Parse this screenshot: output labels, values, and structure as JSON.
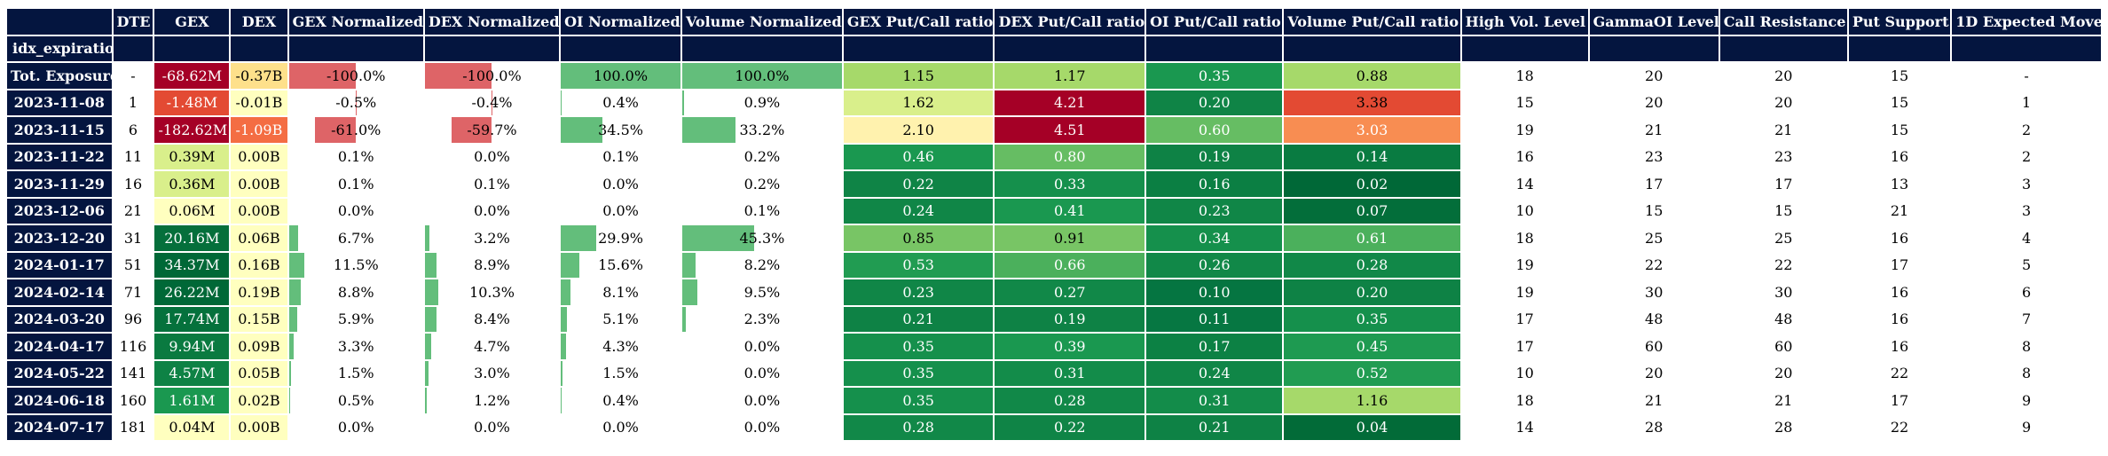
{
  "table": {
    "index_name": "idx_expiration_date",
    "columns": [
      {
        "label": "DTE",
        "type": "text"
      },
      {
        "label": "GEX",
        "type": "heat"
      },
      {
        "label": "DEX",
        "type": "heat"
      },
      {
        "label": "GEX Normalized",
        "type": "bar"
      },
      {
        "label": "DEX Normalized",
        "type": "bar"
      },
      {
        "label": "OI Normalized",
        "type": "bar"
      },
      {
        "label": "Volume Normalized",
        "type": "bar"
      },
      {
        "label": "GEX Put/Call ratio",
        "type": "heat"
      },
      {
        "label": "DEX Put/Call ratio",
        "type": "heat"
      },
      {
        "label": "OI Put/Call ratio",
        "type": "heat"
      },
      {
        "label": "Volume Put/Call ratio",
        "type": "heat"
      },
      {
        "label": "High Vol. Level",
        "type": "text"
      },
      {
        "label": "GammaOI Level",
        "type": "text"
      },
      {
        "label": "Call Resistance",
        "type": "text"
      },
      {
        "label": "Put Support",
        "type": "text"
      },
      {
        "label": "1D Expected Move",
        "type": "text"
      }
    ],
    "column_widths": [
      115,
      44,
      82,
      62,
      148,
      148,
      132,
      176,
      165,
      165,
      150,
      194,
      139,
      142,
      140,
      112,
      164
    ],
    "colors": {
      "header_bg": "#04153f",
      "header_text": "#ffffff",
      "bar_negative": "#de6467",
      "bar_positive": "#63be7b"
    },
    "rows": [
      {
        "index": "Tot. Exposure",
        "cells": [
          {
            "t": "-"
          },
          {
            "t": "-68.62M",
            "bg": "#a50026",
            "fg": "#ffffff"
          },
          {
            "t": "-0.37B",
            "bg": "#fee08b",
            "fg": "#000000"
          },
          {
            "t": "-100.0%",
            "bar": -1.0
          },
          {
            "t": "-100.0%",
            "bar": -1.0
          },
          {
            "t": "100.0%",
            "bar": 1.0
          },
          {
            "t": "100.0%",
            "bar": 1.0
          },
          {
            "t": "1.15",
            "bg": "#a6d96a",
            "fg": "#000000"
          },
          {
            "t": "1.17",
            "bg": "#a6d96a",
            "fg": "#000000"
          },
          {
            "t": "0.35",
            "bg": "#1a9850",
            "fg": "#ffffff"
          },
          {
            "t": "0.88",
            "bg": "#a6d96a",
            "fg": "#000000"
          },
          {
            "t": "18"
          },
          {
            "t": "20"
          },
          {
            "t": "20"
          },
          {
            "t": "15"
          },
          {
            "t": "-"
          }
        ]
      },
      {
        "index": "2023-11-08",
        "cells": [
          {
            "t": "1"
          },
          {
            "t": "-1.48M",
            "bg": "#e34a33",
            "fg": "#ffffff"
          },
          {
            "t": "-0.01B",
            "bg": "#ffffbf",
            "fg": "#000000"
          },
          {
            "t": "-0.5%",
            "bar": -0.005
          },
          {
            "t": "-0.4%",
            "bar": -0.004
          },
          {
            "t": "0.4%",
            "bar": 0.004
          },
          {
            "t": "0.9%",
            "bar": 0.009
          },
          {
            "t": "1.62",
            "bg": "#d9ef8b",
            "fg": "#000000"
          },
          {
            "t": "4.21",
            "bg": "#a50026",
            "fg": "#ffffff"
          },
          {
            "t": "0.20",
            "bg": "#0f8446",
            "fg": "#ffffff"
          },
          {
            "t": "3.38",
            "bg": "#e34a33",
            "fg": "#000000"
          },
          {
            "t": "15"
          },
          {
            "t": "20"
          },
          {
            "t": "20"
          },
          {
            "t": "15"
          },
          {
            "t": "1"
          }
        ]
      },
      {
        "index": "2023-11-15",
        "cells": [
          {
            "t": "6"
          },
          {
            "t": "-182.62M",
            "bg": "#a50026",
            "fg": "#ffffff"
          },
          {
            "t": "-1.09B",
            "bg": "#f46d43",
            "fg": "#ffffff"
          },
          {
            "t": "-61.0%",
            "bar": -0.61
          },
          {
            "t": "-59.7%",
            "bar": -0.597
          },
          {
            "t": "34.5%",
            "bar": 0.345
          },
          {
            "t": "33.2%",
            "bar": 0.332
          },
          {
            "t": "2.10",
            "bg": "#fff2ae",
            "fg": "#000000"
          },
          {
            "t": "4.51",
            "bg": "#a50026",
            "fg": "#ffffff"
          },
          {
            "t": "0.60",
            "bg": "#66bd63",
            "fg": "#ffffff"
          },
          {
            "t": "3.03",
            "bg": "#f88d52",
            "fg": "#ffffff"
          },
          {
            "t": "19"
          },
          {
            "t": "21"
          },
          {
            "t": "21"
          },
          {
            "t": "15"
          },
          {
            "t": "2"
          }
        ]
      },
      {
        "index": "2023-11-22",
        "cells": [
          {
            "t": "11"
          },
          {
            "t": "0.39M",
            "bg": "#d9ef8b",
            "fg": "#000000"
          },
          {
            "t": "0.00B",
            "bg": "#ffffbf",
            "fg": "#000000"
          },
          {
            "t": "0.1%"
          },
          {
            "t": "0.0%"
          },
          {
            "t": "0.1%"
          },
          {
            "t": "0.2%"
          },
          {
            "t": "0.46",
            "bg": "#1a9850",
            "fg": "#ffffff"
          },
          {
            "t": "0.80",
            "bg": "#66bd63",
            "fg": "#ffffff"
          },
          {
            "t": "0.19",
            "bg": "#0e8245",
            "fg": "#ffffff"
          },
          {
            "t": "0.14",
            "bg": "#097b41",
            "fg": "#ffffff"
          },
          {
            "t": "16"
          },
          {
            "t": "23"
          },
          {
            "t": "23"
          },
          {
            "t": "16"
          },
          {
            "t": "2"
          }
        ]
      },
      {
        "index": "2023-11-29",
        "cells": [
          {
            "t": "16"
          },
          {
            "t": "0.36M",
            "bg": "#d9ef8b",
            "fg": "#000000"
          },
          {
            "t": "0.00B",
            "bg": "#ffffbf",
            "fg": "#000000"
          },
          {
            "t": "0.1%"
          },
          {
            "t": "0.1%"
          },
          {
            "t": "0.0%"
          },
          {
            "t": "0.2%"
          },
          {
            "t": "0.22",
            "bg": "#0f8446",
            "fg": "#ffffff"
          },
          {
            "t": "0.33",
            "bg": "#15904c",
            "fg": "#ffffff"
          },
          {
            "t": "0.16",
            "bg": "#0b7f43",
            "fg": "#ffffff"
          },
          {
            "t": "0.02",
            "bg": "#006837",
            "fg": "#ffffff"
          },
          {
            "t": "14"
          },
          {
            "t": "17"
          },
          {
            "t": "17"
          },
          {
            "t": "13"
          },
          {
            "t": "3"
          }
        ]
      },
      {
        "index": "2023-12-06",
        "cells": [
          {
            "t": "21"
          },
          {
            "t": "0.06M",
            "bg": "#ffffbf",
            "fg": "#000000"
          },
          {
            "t": "0.00B",
            "bg": "#ffffbf",
            "fg": "#000000"
          },
          {
            "t": "0.0%"
          },
          {
            "t": "0.0%"
          },
          {
            "t": "0.0%"
          },
          {
            "t": "0.1%"
          },
          {
            "t": "0.24",
            "bg": "#108647",
            "fg": "#ffffff"
          },
          {
            "t": "0.41",
            "bg": "#1a9850",
            "fg": "#ffffff"
          },
          {
            "t": "0.23",
            "bg": "#108647",
            "fg": "#ffffff"
          },
          {
            "t": "0.07",
            "bg": "#036e3a",
            "fg": "#ffffff"
          },
          {
            "t": "10"
          },
          {
            "t": "15"
          },
          {
            "t": "15"
          },
          {
            "t": "21"
          },
          {
            "t": "3"
          }
        ]
      },
      {
        "index": "2023-12-20",
        "cells": [
          {
            "t": "31"
          },
          {
            "t": "20.16M",
            "bg": "#056f3b",
            "fg": "#ffffff"
          },
          {
            "t": "0.06B",
            "bg": "#ffffbf",
            "fg": "#000000"
          },
          {
            "t": "6.7%",
            "bar": 0.067
          },
          {
            "t": "3.2%",
            "bar": 0.032
          },
          {
            "t": "29.9%",
            "bar": 0.299
          },
          {
            "t": "45.3%",
            "bar": 0.453
          },
          {
            "t": "0.85",
            "bg": "#78c565",
            "fg": "#000000"
          },
          {
            "t": "0.91",
            "bg": "#78c565",
            "fg": "#000000"
          },
          {
            "t": "0.34",
            "bg": "#15904c",
            "fg": "#ffffff"
          },
          {
            "t": "0.61",
            "bg": "#4bb05c",
            "fg": "#ffffff"
          },
          {
            "t": "18"
          },
          {
            "t": "25"
          },
          {
            "t": "25"
          },
          {
            "t": "16"
          },
          {
            "t": "4"
          }
        ]
      },
      {
        "index": "2024-01-17",
        "cells": [
          {
            "t": "51"
          },
          {
            "t": "34.37M",
            "bg": "#006837",
            "fg": "#ffffff"
          },
          {
            "t": "0.16B",
            "bg": "#ffffbf",
            "fg": "#000000"
          },
          {
            "t": "11.5%",
            "bar": 0.115
          },
          {
            "t": "8.9%",
            "bar": 0.089
          },
          {
            "t": "15.6%",
            "bar": 0.156
          },
          {
            "t": "8.2%",
            "bar": 0.082
          },
          {
            "t": "0.53",
            "bg": "#219c52",
            "fg": "#ffffff"
          },
          {
            "t": "0.66",
            "bg": "#4bb05c",
            "fg": "#ffffff"
          },
          {
            "t": "0.26",
            "bg": "#118848",
            "fg": "#ffffff"
          },
          {
            "t": "0.28",
            "bg": "#118848",
            "fg": "#ffffff"
          },
          {
            "t": "19"
          },
          {
            "t": "22"
          },
          {
            "t": "22"
          },
          {
            "t": "17"
          },
          {
            "t": "5"
          }
        ]
      },
      {
        "index": "2024-02-14",
        "cells": [
          {
            "t": "71"
          },
          {
            "t": "26.22M",
            "bg": "#006837",
            "fg": "#ffffff"
          },
          {
            "t": "0.19B",
            "bg": "#ffffbf",
            "fg": "#000000"
          },
          {
            "t": "8.8%",
            "bar": 0.088
          },
          {
            "t": "10.3%",
            "bar": 0.103
          },
          {
            "t": "8.1%",
            "bar": 0.081
          },
          {
            "t": "9.5%",
            "bar": 0.095
          },
          {
            "t": "0.23",
            "bg": "#108647",
            "fg": "#ffffff"
          },
          {
            "t": "0.27",
            "bg": "#118848",
            "fg": "#ffffff"
          },
          {
            "t": "0.10",
            "bg": "#057541",
            "fg": "#ffffff"
          },
          {
            "t": "0.20",
            "bg": "#0e8245",
            "fg": "#ffffff"
          },
          {
            "t": "19"
          },
          {
            "t": "30"
          },
          {
            "t": "30"
          },
          {
            "t": "16"
          },
          {
            "t": "6"
          }
        ]
      },
      {
        "index": "2024-03-20",
        "cells": [
          {
            "t": "96"
          },
          {
            "t": "17.74M",
            "bg": "#05713c",
            "fg": "#ffffff"
          },
          {
            "t": "0.15B",
            "bg": "#ffffbf",
            "fg": "#000000"
          },
          {
            "t": "5.9%",
            "bar": 0.059
          },
          {
            "t": "8.4%",
            "bar": 0.084
          },
          {
            "t": "5.1%",
            "bar": 0.051
          },
          {
            "t": "2.3%",
            "bar": 0.023
          },
          {
            "t": "0.21",
            "bg": "#0e8245",
            "fg": "#ffffff"
          },
          {
            "t": "0.19",
            "bg": "#0e8245",
            "fg": "#ffffff"
          },
          {
            "t": "0.11",
            "bg": "#067742",
            "fg": "#ffffff"
          },
          {
            "t": "0.35",
            "bg": "#15904c",
            "fg": "#ffffff"
          },
          {
            "t": "17"
          },
          {
            "t": "48"
          },
          {
            "t": "48"
          },
          {
            "t": "16"
          },
          {
            "t": "7"
          }
        ]
      },
      {
        "index": "2024-04-17",
        "cells": [
          {
            "t": "116"
          },
          {
            "t": "9.94M",
            "bg": "#0a7a40",
            "fg": "#ffffff"
          },
          {
            "t": "0.09B",
            "bg": "#ffffbf",
            "fg": "#000000"
          },
          {
            "t": "3.3%",
            "bar": 0.033
          },
          {
            "t": "4.7%",
            "bar": 0.047
          },
          {
            "t": "4.3%",
            "bar": 0.043
          },
          {
            "t": "0.0%"
          },
          {
            "t": "0.35",
            "bg": "#15904c",
            "fg": "#ffffff"
          },
          {
            "t": "0.39",
            "bg": "#1a9850",
            "fg": "#ffffff"
          },
          {
            "t": "0.17",
            "bg": "#0c8144",
            "fg": "#ffffff"
          },
          {
            "t": "0.45",
            "bg": "#1e9a51",
            "fg": "#ffffff"
          },
          {
            "t": "17"
          },
          {
            "t": "60"
          },
          {
            "t": "60"
          },
          {
            "t": "16"
          },
          {
            "t": "8"
          }
        ]
      },
      {
        "index": "2024-05-22",
        "cells": [
          {
            "t": "141"
          },
          {
            "t": "4.57M",
            "bg": "#0e8245",
            "fg": "#ffffff"
          },
          {
            "t": "0.05B",
            "bg": "#ffffbf",
            "fg": "#000000"
          },
          {
            "t": "1.5%",
            "bar": 0.015
          },
          {
            "t": "3.0%",
            "bar": 0.03
          },
          {
            "t": "1.5%",
            "bar": 0.015
          },
          {
            "t": "0.0%"
          },
          {
            "t": "0.35",
            "bg": "#15904c",
            "fg": "#ffffff"
          },
          {
            "t": "0.31",
            "bg": "#138c4a",
            "fg": "#ffffff"
          },
          {
            "t": "0.24",
            "bg": "#108647",
            "fg": "#ffffff"
          },
          {
            "t": "0.52",
            "bg": "#219c52",
            "fg": "#ffffff"
          },
          {
            "t": "10"
          },
          {
            "t": "20"
          },
          {
            "t": "20"
          },
          {
            "t": "22"
          },
          {
            "t": "8"
          }
        ]
      },
      {
        "index": "2024-06-18",
        "cells": [
          {
            "t": "160"
          },
          {
            "t": "1.61M",
            "bg": "#1a9850",
            "fg": "#ffffff"
          },
          {
            "t": "0.02B",
            "bg": "#ffffbf",
            "fg": "#000000"
          },
          {
            "t": "0.5%",
            "bar": 0.005
          },
          {
            "t": "1.2%",
            "bar": 0.012
          },
          {
            "t": "0.4%",
            "bar": 0.004
          },
          {
            "t": "0.0%"
          },
          {
            "t": "0.35",
            "bg": "#15904c",
            "fg": "#ffffff"
          },
          {
            "t": "0.28",
            "bg": "#118848",
            "fg": "#ffffff"
          },
          {
            "t": "0.31",
            "bg": "#138c4a",
            "fg": "#ffffff"
          },
          {
            "t": "1.16",
            "bg": "#a6d96a",
            "fg": "#000000"
          },
          {
            "t": "18"
          },
          {
            "t": "21"
          },
          {
            "t": "21"
          },
          {
            "t": "17"
          },
          {
            "t": "9"
          }
        ]
      },
      {
        "index": "2024-07-17",
        "cells": [
          {
            "t": "181"
          },
          {
            "t": "0.04M",
            "bg": "#ffffbf",
            "fg": "#000000"
          },
          {
            "t": "0.00B",
            "bg": "#ffffbf",
            "fg": "#000000"
          },
          {
            "t": "0.0%"
          },
          {
            "t": "0.0%"
          },
          {
            "t": "0.0%"
          },
          {
            "t": "0.0%"
          },
          {
            "t": "0.28",
            "bg": "#118848",
            "fg": "#ffffff"
          },
          {
            "t": "0.22",
            "bg": "#0f8446",
            "fg": "#ffffff"
          },
          {
            "t": "0.21",
            "bg": "#0e8245",
            "fg": "#ffffff"
          },
          {
            "t": "0.04",
            "bg": "#026b38",
            "fg": "#ffffff"
          },
          {
            "t": "14"
          },
          {
            "t": "28"
          },
          {
            "t": "28"
          },
          {
            "t": "22"
          },
          {
            "t": "9"
          }
        ]
      }
    ]
  }
}
